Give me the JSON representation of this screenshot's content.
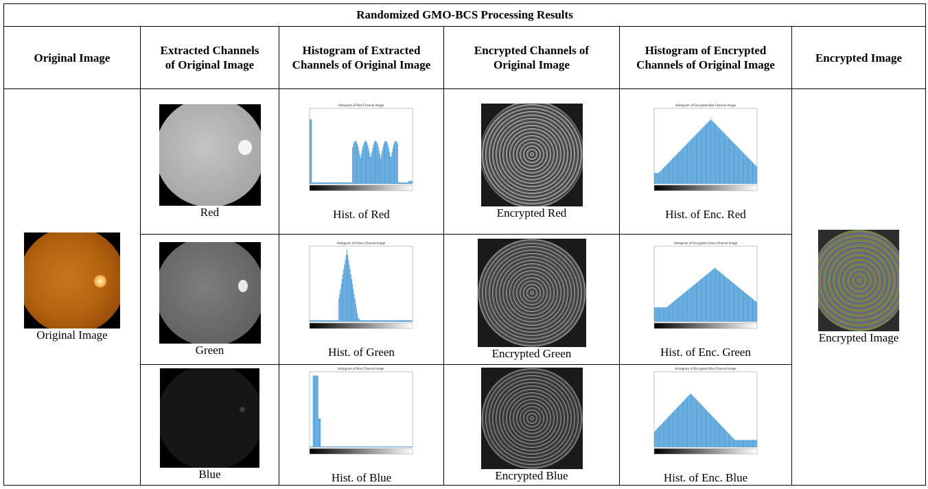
{
  "title": "Randomized GMO-BCS Processing Results",
  "headers": [
    "Original Image",
    "Extracted Channels of Original Image",
    "Histogram of Extracted Channels of Original Image",
    "Encrypted Channels of Original Image",
    "Histogram of Encrypted Channels of Original Image",
    "Encrypted Image"
  ],
  "original_caption": "Original Image",
  "encrypted_caption": "Encrypted Image",
  "rows": [
    {
      "channel": "Red",
      "hist_caption": "Hist. of Red",
      "enc_caption": "Encrypted Red",
      "enc_hist_caption": "Hist. of Enc. Red",
      "hist_title": "Histogram of Red Channel Image",
      "enc_hist_title": "Histogram of Encrypted Red Channel Image",
      "fundus_color": "#b8b8b8"
    },
    {
      "channel": "Green",
      "hist_caption": "Hist. of Green",
      "enc_caption": "Encrypted Green",
      "enc_hist_caption": "Hist. of Enc. Green",
      "hist_title": "Histogram of Green Channel Image",
      "enc_hist_title": "Histogram of Encrypted Green Channel Image",
      "fundus_color": "#707070"
    },
    {
      "channel": "Blue",
      "hist_caption": "Hist. of Blue",
      "enc_caption": "Encrypted Blue",
      "enc_hist_caption": "Hist. of Enc. Blue",
      "hist_title": "Histogram of Blue Channel Image",
      "enc_hist_title": "Histogram of Encrypted Blue Channel Image",
      "fundus_color": "#141414"
    }
  ],
  "colors": {
    "bar": "#4f9fd8",
    "border": "#000000"
  }
}
